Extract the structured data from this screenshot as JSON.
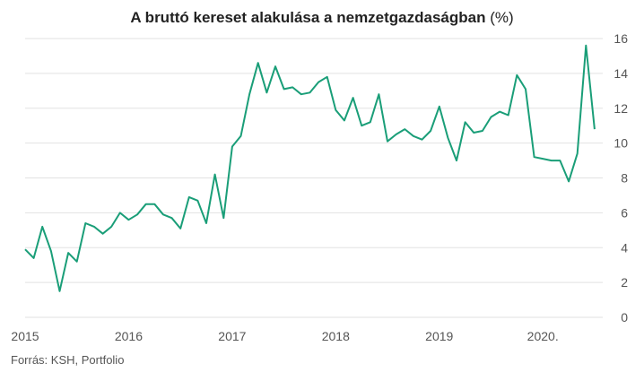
{
  "chart_data": {
    "type": "line",
    "title": "A bruttó kereset alakulása a nemzetgazdaságban",
    "title_unit": "(%)",
    "source": "Forrás: KSH, Portfolio",
    "xlabel": "",
    "ylabel": "",
    "ylim": [
      0,
      16
    ],
    "yticks": [
      "0",
      "2",
      "4",
      "6",
      "8",
      "10",
      "12",
      "14",
      "16"
    ],
    "xticks": [
      "2015",
      "2016",
      "2017",
      "2018",
      "2019",
      "2020."
    ],
    "grid": true,
    "line_color": "#1a9e78",
    "x": [
      "2015-01",
      "2015-02",
      "2015-03",
      "2015-04",
      "2015-05",
      "2015-06",
      "2015-07",
      "2015-08",
      "2015-09",
      "2015-10",
      "2015-11",
      "2015-12",
      "2016-01",
      "2016-02",
      "2016-03",
      "2016-04",
      "2016-05",
      "2016-06",
      "2016-07",
      "2016-08",
      "2016-09",
      "2016-10",
      "2016-11",
      "2016-12",
      "2017-01",
      "2017-02",
      "2017-03",
      "2017-04",
      "2017-05",
      "2017-06",
      "2017-07",
      "2017-08",
      "2017-09",
      "2017-10",
      "2017-11",
      "2017-12",
      "2018-01",
      "2018-02",
      "2018-03",
      "2018-04",
      "2018-05",
      "2018-06",
      "2018-07",
      "2018-08",
      "2018-09",
      "2018-10",
      "2018-11",
      "2018-12",
      "2019-01",
      "2019-02",
      "2019-03",
      "2019-04",
      "2019-05",
      "2019-06",
      "2019-07",
      "2019-08",
      "2019-09",
      "2019-10",
      "2019-11",
      "2019-12",
      "2020-01",
      "2020-02",
      "2020-03",
      "2020-04",
      "2020-05",
      "2020-06",
      "2020-07"
    ],
    "values": [
      3.9,
      3.4,
      5.2,
      3.8,
      1.5,
      3.7,
      3.2,
      5.4,
      5.2,
      4.8,
      5.2,
      6.0,
      5.6,
      5.9,
      6.5,
      6.5,
      5.9,
      5.7,
      5.1,
      6.9,
      6.7,
      5.4,
      8.2,
      5.7,
      9.8,
      10.4,
      12.8,
      14.6,
      12.9,
      14.4,
      13.1,
      13.2,
      12.8,
      12.9,
      13.5,
      13.8,
      11.9,
      11.3,
      12.6,
      11.0,
      11.2,
      12.8,
      10.1,
      10.5,
      10.8,
      10.4,
      10.2,
      10.7,
      12.1,
      10.3,
      9.0,
      11.2,
      10.6,
      10.7,
      11.5,
      11.8,
      11.6,
      13.9,
      13.1,
      9.2,
      9.1,
      9.0,
      9.0,
      7.8,
      9.4,
      15.6,
      10.8
    ]
  }
}
